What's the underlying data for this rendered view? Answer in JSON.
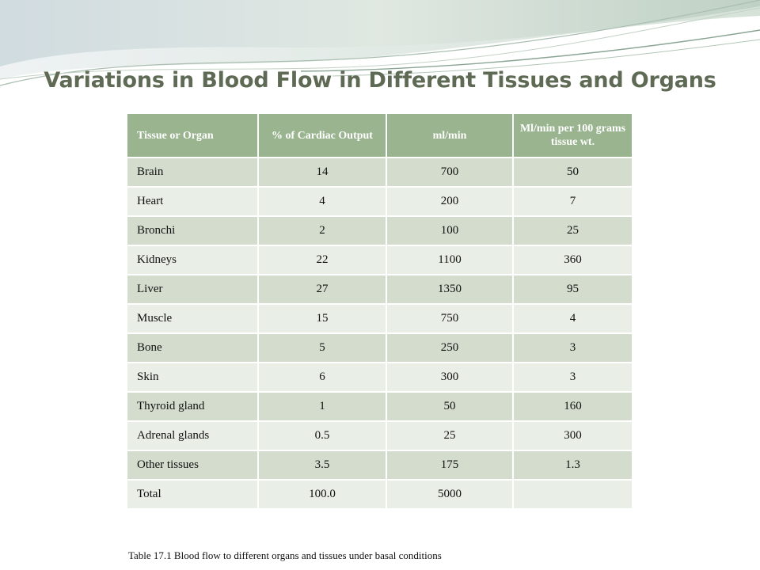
{
  "slide": {
    "title": "Variations in Blood Flow in Different Tissues and Organs",
    "caption": "Table 17.1  Blood flow to different organs and tissues under basal conditions"
  },
  "table": {
    "headers": [
      "Tissue or Organ",
      "% of Cardiac Output",
      "ml/min",
      "Ml/min per 100 grams tissue wt."
    ],
    "rows": [
      [
        "Brain",
        "14",
        "700",
        "50"
      ],
      [
        "Heart",
        "4",
        "200",
        "7"
      ],
      [
        "Bronchi",
        "2",
        "100",
        "25"
      ],
      [
        "Kidneys",
        "22",
        "1100",
        "360"
      ],
      [
        "Liver",
        "27",
        "1350",
        "95"
      ],
      [
        "Muscle",
        "15",
        "750",
        "4"
      ],
      [
        "Bone",
        "5",
        "250",
        "3"
      ],
      [
        "Skin",
        "6",
        "300",
        "3"
      ],
      [
        "Thyroid gland",
        "1",
        "50",
        "160"
      ],
      [
        "Adrenal glands",
        "0.5",
        "25",
        "300"
      ],
      [
        "Other tissues",
        "3.5",
        "175",
        "1.3"
      ],
      [
        "Total",
        "100.0",
        "5000",
        ""
      ]
    ]
  },
  "colors": {
    "header_fill": "#99b48f",
    "row_odd": "#d3dccd",
    "row_even": "#e9eee6",
    "title": "#5f6a55"
  }
}
